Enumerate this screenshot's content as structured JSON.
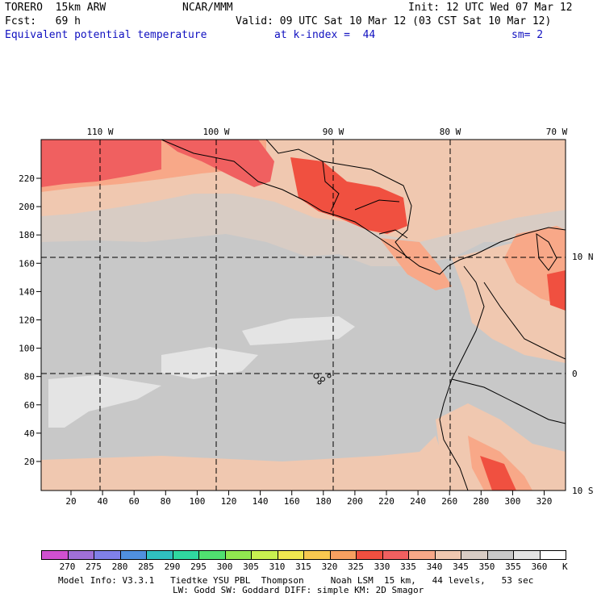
{
  "header": {
    "model": "TORERO  15km ARW",
    "center": "NCAR/MMM",
    "init": "Init: 12 UTC Wed 07 Mar 12",
    "fcst": "Fcst:   69 h",
    "valid": "Valid: 09 UTC Sat 10 Mar 12 (03 CST Sat 10 Mar 12)",
    "field": "Equivalent potential temperature",
    "level": "at k-index =  44",
    "smooth": "sm= 2"
  },
  "map": {
    "x_ticks": [
      "20",
      "40",
      "60",
      "80",
      "100",
      "120",
      "140",
      "160",
      "180",
      "200",
      "220",
      "240",
      "260",
      "280",
      "300",
      "320"
    ],
    "y_ticks": [
      "20",
      "40",
      "60",
      "80",
      "100",
      "120",
      "140",
      "160",
      "180",
      "200",
      "220"
    ],
    "lon_labels": [
      "110 W",
      "100 W",
      "90 W",
      "80 W",
      "70 W"
    ],
    "lat_labels": [
      "10 N",
      "0",
      "10 S"
    ]
  },
  "colorbar": {
    "levels": [
      "270",
      "275",
      "280",
      "285",
      "290",
      "295",
      "300",
      "305",
      "310",
      "315",
      "320",
      "325",
      "330",
      "335",
      "340",
      "345",
      "350",
      "355",
      "360"
    ],
    "colors": [
      "#d050d0",
      "#a070d8",
      "#8080e8",
      "#5090e0",
      "#30c0c0",
      "#30d8a0",
      "#50e070",
      "#90e850",
      "#c8f050",
      "#f0e850",
      "#f8c850",
      "#f8a060",
      "#f05040",
      "#f06060",
      "#f8a888",
      "#f0c8b0",
      "#d8ccc4",
      "#c8c8c8",
      "#e4e4e4",
      "#ffffff"
    ],
    "unit": "K"
  },
  "footer": {
    "line1": "Model Info: V3.3.1   Tiedtke YSU PBL  Thompson     Noah LSM  15 km,   44 levels,   53 sec",
    "line2": "LW: Godd SW: Goddard DIFF: simple KM: 2D Smagor"
  }
}
